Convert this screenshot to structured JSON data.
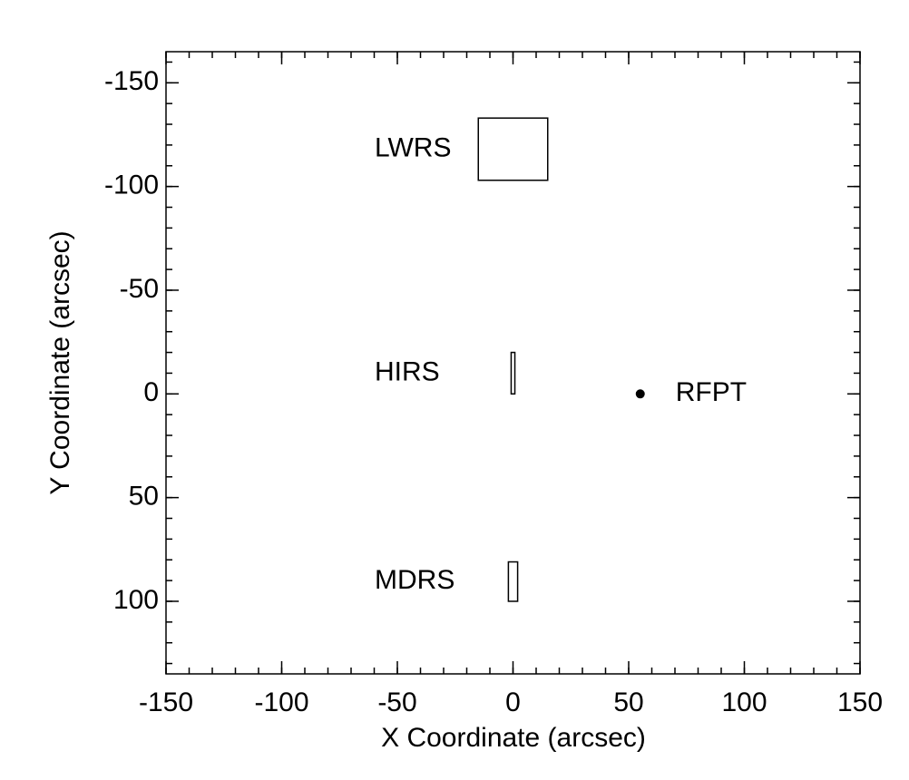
{
  "chart_data": {
    "type": "scatter",
    "xlabel": "X Coordinate (arcsec)",
    "ylabel": "Y Coordinate (arcsec)",
    "xlim": [
      -150,
      150
    ],
    "xticks": [
      -150,
      -100,
      -50,
      0,
      50,
      100,
      150
    ],
    "ylim": [
      -165,
      135
    ],
    "yticks": [
      -150,
      -100,
      -50,
      0,
      50,
      100
    ],
    "y_reversed": true,
    "minor_tick_step": 10,
    "mirror_ticks": true,
    "color": "#000000",
    "apertures": [
      {
        "name": "LWRS",
        "x": [
          -15,
          15
        ],
        "y": [
          -133,
          -103
        ]
      },
      {
        "name": "HIRS",
        "x": [
          -0.8,
          0.8
        ],
        "y": [
          -20,
          0
        ]
      },
      {
        "name": "MDRS",
        "x": [
          -2,
          2
        ],
        "y": [
          81,
          100
        ]
      }
    ],
    "points": [
      {
        "name": "RFPT",
        "x": 55,
        "y": 0
      }
    ]
  }
}
